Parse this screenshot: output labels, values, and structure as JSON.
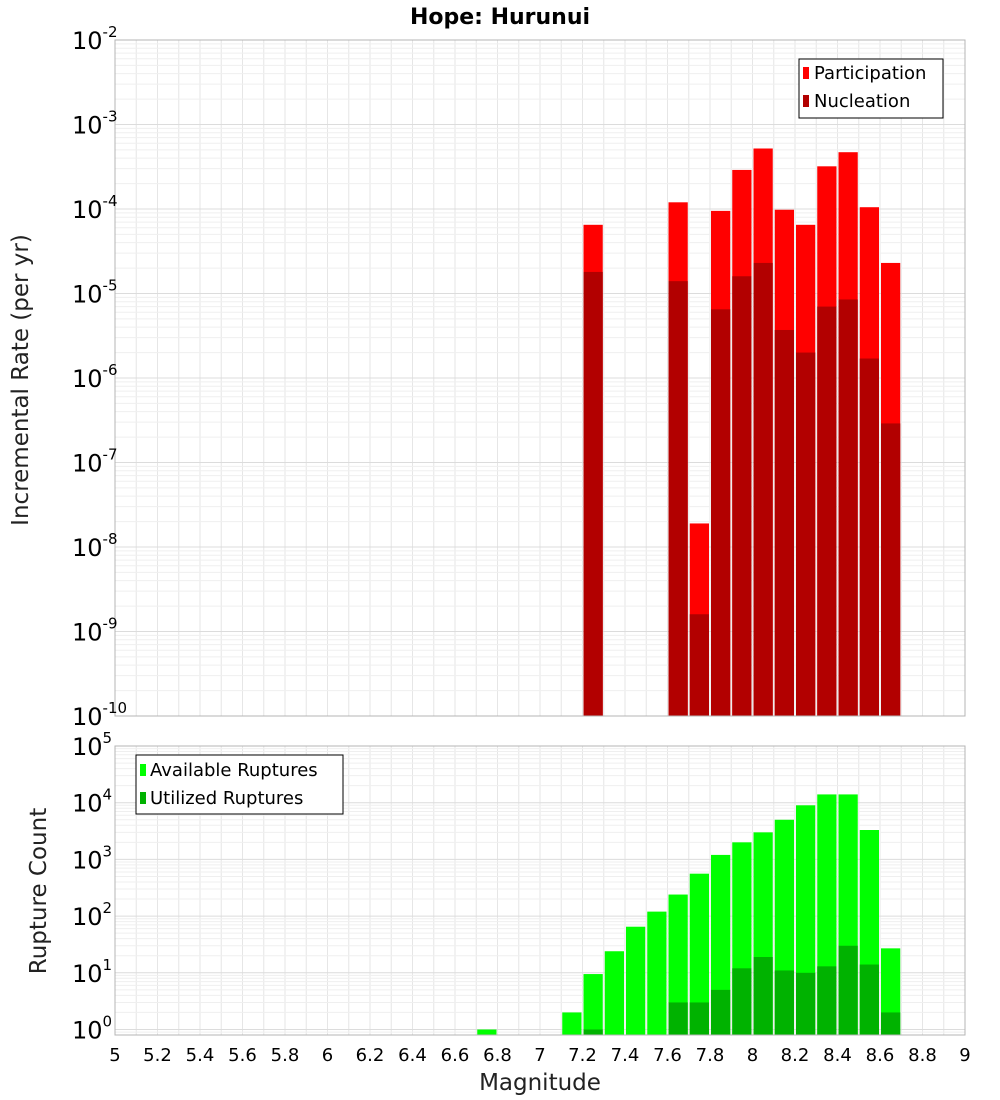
{
  "title": "Hope: Hurunui",
  "colors": {
    "participation": "#ff0000",
    "nucleation": "#b20000",
    "available": "#00ff00",
    "utilized": "#00b200",
    "grid": "#e6e6e6",
    "frame": "#b4b4b4"
  },
  "chart_data": [
    {
      "type": "bar",
      "name": "rate-panel",
      "xlabel": "Magnitude",
      "ylabel": "Incremental Rate (per yr)",
      "yscale": "log",
      "ylim": [
        1e-10,
        0.01
      ],
      "yticks": [
        {
          "base": "10",
          "exp": "-10"
        },
        {
          "base": "10",
          "exp": "-9"
        },
        {
          "base": "10",
          "exp": "-8"
        },
        {
          "base": "10",
          "exp": "-7"
        },
        {
          "base": "10",
          "exp": "-6"
        },
        {
          "base": "10",
          "exp": "-5"
        },
        {
          "base": "10",
          "exp": "-4"
        },
        {
          "base": "10",
          "exp": "-3"
        },
        {
          "base": "10",
          "exp": "-2"
        }
      ],
      "legend": {
        "position": "top-right",
        "entries": [
          "Participation",
          "Nucleation"
        ]
      },
      "series": [
        {
          "name": "Participation",
          "x": [
            7.25,
            7.65,
            7.75,
            7.85,
            7.95,
            8.05,
            8.15,
            8.25,
            8.35,
            8.45,
            8.55,
            8.65
          ],
          "values": [
            6.5e-05,
            0.00012,
            1.9e-08,
            9.5e-05,
            0.00029,
            0.00052,
            9.8e-05,
            6.5e-05,
            0.00032,
            0.00047,
            0.000105,
            2.3e-05
          ]
        },
        {
          "name": "Nucleation",
          "x": [
            7.25,
            7.65,
            7.75,
            7.85,
            7.95,
            8.05,
            8.15,
            8.25,
            8.35,
            8.45,
            8.55,
            8.65
          ],
          "values": [
            1.8e-05,
            1.4e-05,
            1.6e-09,
            6.5e-06,
            1.6e-05,
            2.3e-05,
            3.7e-06,
            2e-06,
            7e-06,
            8.5e-06,
            1.7e-06,
            2.9e-07
          ]
        }
      ]
    },
    {
      "type": "bar",
      "name": "count-panel",
      "xlabel": "Magnitude",
      "ylabel": "Rupture Count",
      "yscale": "log",
      "ylim": [
        0.8,
        100000
      ],
      "yticks": [
        {
          "base": "10",
          "exp": "0"
        },
        {
          "base": "10",
          "exp": "1"
        },
        {
          "base": "10",
          "exp": "2"
        },
        {
          "base": "10",
          "exp": "3"
        },
        {
          "base": "10",
          "exp": "4"
        },
        {
          "base": "10",
          "exp": "5"
        }
      ],
      "legend": {
        "position": "top-left",
        "entries": [
          "Available Ruptures",
          "Utilized Ruptures"
        ]
      },
      "series": [
        {
          "name": "Available Ruptures",
          "x": [
            6.75,
            7.15,
            7.25,
            7.35,
            7.45,
            7.55,
            7.65,
            7.75,
            7.85,
            7.95,
            8.05,
            8.15,
            8.25,
            8.35,
            8.45,
            8.55,
            8.65
          ],
          "values": [
            1,
            2,
            9.5,
            24,
            65,
            120,
            240,
            560,
            1200,
            2000,
            3000,
            5000,
            9000,
            14000,
            14000,
            3300,
            27
          ]
        },
        {
          "name": "Utilized Ruptures",
          "x": [
            7.25,
            7.65,
            7.75,
            7.85,
            7.95,
            8.05,
            8.15,
            8.25,
            8.35,
            8.45,
            8.55,
            8.65
          ],
          "values": [
            1,
            3,
            3,
            5,
            12,
            19,
            11,
            10,
            13,
            30,
            14,
            2
          ]
        }
      ]
    }
  ],
  "xaxis": {
    "xlim": [
      5,
      9
    ],
    "tick_labels": [
      "5",
      "5.2",
      "5.4",
      "5.6",
      "5.8",
      "6",
      "6.2",
      "6.4",
      "6.6",
      "6.8",
      "7",
      "7.2",
      "7.4",
      "7.6",
      "7.8",
      "8",
      "8.2",
      "8.4",
      "8.6",
      "8.8",
      "9"
    ]
  }
}
